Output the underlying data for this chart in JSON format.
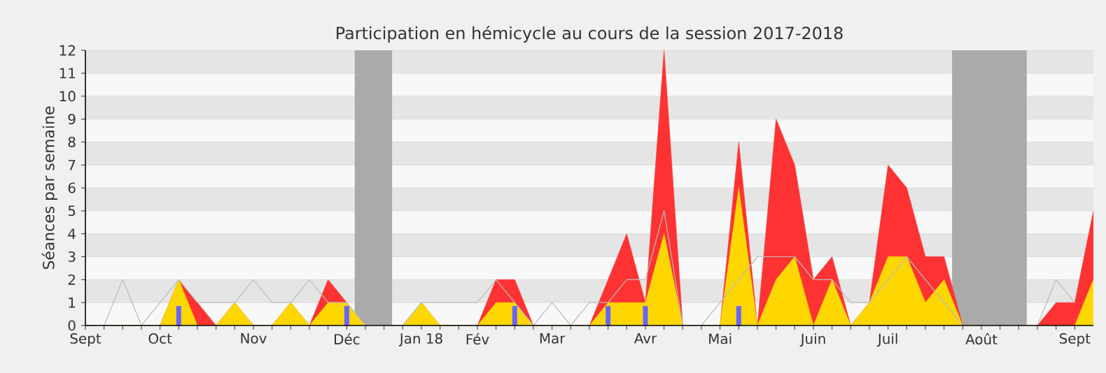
{
  "chart_data": {
    "type": "area",
    "title": "Participation en hémicycle au cours de la session 2017-2018",
    "ylabel": "Séances par semaine",
    "x": [
      "2017-09-11",
      "2017-09-18",
      "2017-09-25",
      "2017-10-02",
      "2017-10-09",
      "2017-10-16",
      "2017-10-23",
      "2017-10-30",
      "2017-11-06",
      "2017-11-13",
      "2017-11-20",
      "2017-11-27",
      "2017-12-04",
      "2017-12-11",
      "2017-12-18",
      "2017-12-25",
      "2018-01-01",
      "2018-01-08",
      "2018-01-15",
      "2018-01-22",
      "2018-01-29",
      "2018-02-05",
      "2018-02-12",
      "2018-02-19",
      "2018-02-26",
      "2018-03-05",
      "2018-03-12",
      "2018-03-19",
      "2018-03-26",
      "2018-04-02",
      "2018-04-09",
      "2018-04-16",
      "2018-04-23",
      "2018-04-30",
      "2018-05-07",
      "2018-05-14",
      "2018-05-21",
      "2018-05-28",
      "2018-06-04",
      "2018-06-11",
      "2018-06-18",
      "2018-06-25",
      "2018-07-02",
      "2018-07-09",
      "2018-07-16",
      "2018-07-23",
      "2018-07-30",
      "2018-08-06",
      "2018-08-13",
      "2018-08-20",
      "2018-08-27",
      "2018-09-03",
      "2018-09-10",
      "2018-09-17",
      "2018-09-24"
    ],
    "series": [
      {
        "color": "#ff3333",
        "values": [
          0,
          0,
          0,
          0,
          0,
          2,
          1,
          0,
          1,
          0,
          0,
          1,
          0,
          2,
          1,
          0,
          0,
          0,
          1,
          0,
          0,
          0,
          2,
          2,
          0,
          0,
          0,
          0,
          2,
          4,
          1,
          12,
          0,
          0,
          0,
          8,
          0,
          9,
          7,
          2,
          3,
          0,
          1,
          7,
          6,
          3,
          3,
          0,
          0,
          0,
          0,
          0,
          1,
          1,
          5
        ]
      },
      {
        "color": "#ffd700",
        "values": [
          0,
          0,
          0,
          0,
          0,
          2,
          0,
          0,
          1,
          0,
          0,
          1,
          0,
          1,
          1,
          0,
          0,
          0,
          1,
          0,
          0,
          0,
          1,
          1,
          0,
          0,
          0,
          0,
          1,
          1,
          1,
          4,
          0,
          0,
          0,
          6,
          0,
          2,
          3,
          0,
          2,
          0,
          1,
          3,
          3,
          1,
          2,
          0,
          0,
          0,
          0,
          0,
          0,
          0,
          2
        ]
      },
      {
        "type": "line",
        "color": "#bbbbbb",
        "values": [
          0,
          0,
          2,
          0,
          1,
          2,
          1,
          1,
          1,
          2,
          1,
          1,
          2,
          1,
          1,
          0,
          0,
          0,
          1,
          1,
          1,
          1,
          2,
          1,
          0,
          1,
          0,
          1,
          1,
          2,
          2,
          5,
          0,
          0,
          1,
          2,
          3,
          3,
          3,
          2,
          2,
          1,
          1,
          2,
          3,
          2,
          1,
          0,
          0,
          0,
          0,
          0,
          2,
          1,
          null
        ]
      },
      {
        "type": "bar",
        "color": "#6666ff",
        "x": [
          "2017-10-16",
          "2017-12-18",
          "2018-02-19",
          "2018-03-26",
          "2018-04-09",
          "2018-05-14"
        ],
        "values": [
          0.85,
          0.85,
          0.85,
          0.85,
          0.85,
          0.85
        ]
      }
    ],
    "xlim": [
      "2017-09-11",
      "2018-09-24"
    ],
    "ylim": [
      0,
      12
    ],
    "xticks": [
      {
        "value": "2017-09-11",
        "label": "Sept"
      },
      {
        "value": "2017-09-18",
        "label": null
      },
      {
        "value": "2017-09-25",
        "label": null
      },
      {
        "value": "2017-10-02",
        "label": null
      },
      {
        "value": "2017-10-09",
        "label": "Oct"
      },
      {
        "value": "2017-10-16",
        "label": null
      },
      {
        "value": "2017-10-23",
        "label": null
      },
      {
        "value": "2017-10-30",
        "label": null
      },
      {
        "value": "2017-11-06",
        "label": null
      },
      {
        "value": "2017-11-13",
        "label": "Nov"
      },
      {
        "value": "2017-11-20",
        "label": null
      },
      {
        "value": "2017-11-27",
        "label": null
      },
      {
        "value": "2017-12-04",
        "label": null
      },
      {
        "value": "2017-12-11",
        "label": null
      },
      {
        "value": "2017-12-18",
        "label": "Déc"
      },
      {
        "value": "2017-12-25",
        "label": null
      },
      {
        "value": "2018-01-01",
        "label": null
      },
      {
        "value": "2018-01-08",
        "label": null
      },
      {
        "value": "2018-01-15",
        "label": "Jan 18"
      },
      {
        "value": "2018-01-22",
        "label": null
      },
      {
        "value": "2018-01-29",
        "label": null
      },
      {
        "value": "2018-02-05",
        "label": "Fév"
      },
      {
        "value": "2018-02-12",
        "label": null
      },
      {
        "value": "2018-02-19",
        "label": null
      },
      {
        "value": "2018-02-26",
        "label": null
      },
      {
        "value": "2018-03-05",
        "label": "Mar"
      },
      {
        "value": "2018-03-12",
        "label": null
      },
      {
        "value": "2018-03-19",
        "label": null
      },
      {
        "value": "2018-03-26",
        "label": null
      },
      {
        "value": "2018-04-02",
        "label": null
      },
      {
        "value": "2018-04-09",
        "label": "Avr"
      },
      {
        "value": "2018-04-16",
        "label": null
      },
      {
        "value": "2018-04-23",
        "label": null
      },
      {
        "value": "2018-04-30",
        "label": null
      },
      {
        "value": "2018-05-07",
        "label": "Mai"
      },
      {
        "value": "2018-05-14",
        "label": null
      },
      {
        "value": "2018-05-21",
        "label": null
      },
      {
        "value": "2018-05-28",
        "label": null
      },
      {
        "value": "2018-06-04",
        "label": null
      },
      {
        "value": "2018-06-11",
        "label": "Juin"
      },
      {
        "value": "2018-06-18",
        "label": null
      },
      {
        "value": "2018-06-25",
        "label": null
      },
      {
        "value": "2018-07-02",
        "label": null
      },
      {
        "value": "2018-07-09",
        "label": "Juil"
      },
      {
        "value": "2018-07-16",
        "label": null
      },
      {
        "value": "2018-07-23",
        "label": null
      },
      {
        "value": "2018-07-30",
        "label": null
      },
      {
        "value": "2018-08-06",
        "label": null
      },
      {
        "value": "2018-08-13",
        "label": "Août"
      },
      {
        "value": "2018-08-20",
        "label": null
      },
      {
        "value": "2018-08-27",
        "label": null
      },
      {
        "value": "2018-09-03",
        "label": null
      },
      {
        "value": "2018-09-10",
        "label": null
      },
      {
        "value": "2018-09-17",
        "label": "Sept"
      }
    ],
    "yticks": [
      0,
      1,
      2,
      3,
      4,
      5,
      6,
      7,
      8,
      9,
      10,
      11,
      12
    ],
    "bands": [
      {
        "axis": "x",
        "from": "2017-12-21",
        "to": "2018-01-04",
        "color": "#aaaaaa"
      },
      {
        "axis": "x",
        "from": "2018-08-02",
        "to": "2018-08-30",
        "color": "#aaaaaa"
      }
    ],
    "grid": "y"
  }
}
